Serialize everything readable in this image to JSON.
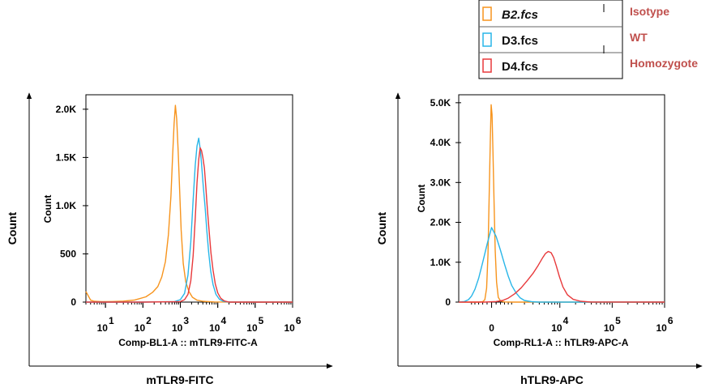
{
  "colors": {
    "isotype": "#f7941d",
    "wt": "#29b6e8",
    "homozygote": "#e8393b",
    "group_label": "#c0504d"
  },
  "legend": {
    "entries": [
      {
        "file": "B2.fcs",
        "group": "Isotype",
        "color_key": "isotype",
        "italic": true
      },
      {
        "file": "D3.fcs",
        "group": "WT",
        "color_key": "wt",
        "italic": false
      },
      {
        "file": "D4.fcs",
        "group": "Homozygote",
        "color_key": "homozygote",
        "italic": false
      }
    ]
  },
  "chart_data": [
    {
      "type": "line",
      "subtype": "histogram-overlay",
      "title": "",
      "xlabel": "Comp-BL1-A :: mTLR9-FITC-A",
      "ylabel": "Count",
      "outer_xlabel": "mTLR9-FITC",
      "outer_ylabel": "Count",
      "x_scale": "log",
      "xlim": [
        3,
        1000000
      ],
      "ylim": [
        0,
        2150
      ],
      "y_ticks": [
        {
          "value": 0,
          "label": "0"
        },
        {
          "value": 500,
          "label": "500"
        },
        {
          "value": 1000,
          "label": "1.0K"
        },
        {
          "value": 1500,
          "label": "1.5K"
        },
        {
          "value": 2000,
          "label": "2.0K"
        }
      ],
      "x_ticks": [
        {
          "value": 10,
          "base": "10",
          "exp": "1"
        },
        {
          "value": 100,
          "base": "10",
          "exp": "2"
        },
        {
          "value": 1000,
          "base": "10",
          "exp": "3"
        },
        {
          "value": 10000,
          "base": "10",
          "exp": "4"
        },
        {
          "value": 100000,
          "base": "10",
          "exp": "5"
        },
        {
          "value": 1000000,
          "base": "10",
          "exp": "6"
        }
      ],
      "series": [
        {
          "name": "B2.fcs",
          "color_key": "isotype",
          "x": [
            3,
            4,
            5,
            8,
            15,
            30,
            60,
            120,
            180,
            250,
            320,
            400,
            480,
            560,
            620,
            680,
            740,
            800,
            880,
            960,
            1050,
            1200,
            1400,
            1700,
            2100,
            2800,
            4000,
            8000,
            30000,
            1000000
          ],
          "y": [
            110,
            20,
            8,
            4,
            6,
            10,
            22,
            55,
            100,
            160,
            260,
            420,
            700,
            1100,
            1500,
            1850,
            2040,
            1900,
            1550,
            1150,
            750,
            400,
            210,
            110,
            50,
            20,
            8,
            2,
            0,
            0
          ]
        },
        {
          "name": "D3.fcs",
          "color_key": "wt",
          "x": [
            3,
            100,
            700,
            1000,
            1300,
            1600,
            1900,
            2200,
            2500,
            2800,
            3100,
            3400,
            3700,
            4100,
            4600,
            5100,
            5700,
            6500,
            7500,
            9000,
            11000,
            14000,
            20000,
            1000000
          ],
          "y": [
            0,
            0,
            5,
            25,
            90,
            280,
            620,
            1060,
            1420,
            1620,
            1700,
            1590,
            1430,
            1200,
            980,
            740,
            520,
            320,
            180,
            80,
            30,
            8,
            0,
            0
          ]
        },
        {
          "name": "D4.fcs",
          "color_key": "homozygote",
          "x": [
            3,
            100,
            1000,
            1300,
            1600,
            1900,
            2200,
            2500,
            2800,
            3100,
            3400,
            3700,
            4000,
            4400,
            4800,
            5300,
            5900,
            6600,
            7500,
            8600,
            10000,
            12000,
            15000,
            20000,
            1000000
          ],
          "y": [
            0,
            0,
            5,
            25,
            80,
            220,
            480,
            870,
            1240,
            1480,
            1600,
            1570,
            1500,
            1390,
            1200,
            960,
            730,
            510,
            330,
            190,
            95,
            40,
            12,
            0,
            0
          ]
        }
      ]
    },
    {
      "type": "line",
      "subtype": "histogram-overlay",
      "title": "",
      "xlabel": "Comp-RL1-A :: hTLR9-APC-A",
      "ylabel": "Count",
      "outer_xlabel": "hTLR9-APC",
      "outer_ylabel": "Count",
      "x_scale": "biexponential",
      "xlim": [
        -2000,
        1000000
      ],
      "ylim": [
        0,
        5200
      ],
      "y_ticks": [
        {
          "value": 0,
          "label": "0"
        },
        {
          "value": 1000,
          "label": "1.0K"
        },
        {
          "value": 2000,
          "label": "2.0K"
        },
        {
          "value": 3000,
          "label": "3.0K"
        },
        {
          "value": 4000,
          "label": "4.0K"
        },
        {
          "value": 5000,
          "label": "5.0K"
        }
      ],
      "x_ticks": [
        {
          "value": 0,
          "base": "0",
          "exp": ""
        },
        {
          "value": 10000,
          "base": "10",
          "exp": "4"
        },
        {
          "value": 100000,
          "base": "10",
          "exp": "5"
        },
        {
          "value": 1000000,
          "base": "10",
          "exp": "6"
        }
      ],
      "series": [
        {
          "name": "B2.fcs",
          "color_key": "isotype",
          "x": [
            -2000,
            -600,
            -400,
            -300,
            -220,
            -160,
            -110,
            -60,
            -20,
            20,
            60,
            110,
            160,
            220,
            300,
            400,
            600,
            1000,
            1000000
          ],
          "y": [
            0,
            0,
            10,
            60,
            350,
            1200,
            2600,
            4000,
            4950,
            4700,
            3800,
            2500,
            1300,
            500,
            120,
            30,
            5,
            0,
            0
          ]
        },
        {
          "name": "D3.fcs",
          "color_key": "wt",
          "x": [
            -2000,
            -1500,
            -1200,
            -1000,
            -800,
            -600,
            -400,
            -200,
            0,
            200,
            400,
            600,
            800,
            1000,
            1300,
            1600,
            2000,
            2800,
            4000,
            1000000
          ],
          "y": [
            0,
            15,
            60,
            150,
            320,
            600,
            1000,
            1450,
            1870,
            1650,
            1300,
            950,
            650,
            420,
            230,
            110,
            40,
            10,
            0,
            0
          ]
        },
        {
          "name": "D4.fcs",
          "color_key": "homozygote",
          "x": [
            -2000,
            -300,
            200,
            500,
            800,
            1200,
            1700,
            2300,
            3000,
            3800,
            4600,
            5300,
            6000,
            6800,
            7600,
            8600,
            9800,
            11500,
            14000,
            18000,
            25000,
            40000,
            1000000
          ],
          "y": [
            0,
            0,
            15,
            40,
            100,
            210,
            360,
            540,
            720,
            920,
            1100,
            1220,
            1270,
            1240,
            1120,
            900,
            640,
            380,
            180,
            70,
            20,
            3,
            0
          ]
        }
      ]
    }
  ]
}
